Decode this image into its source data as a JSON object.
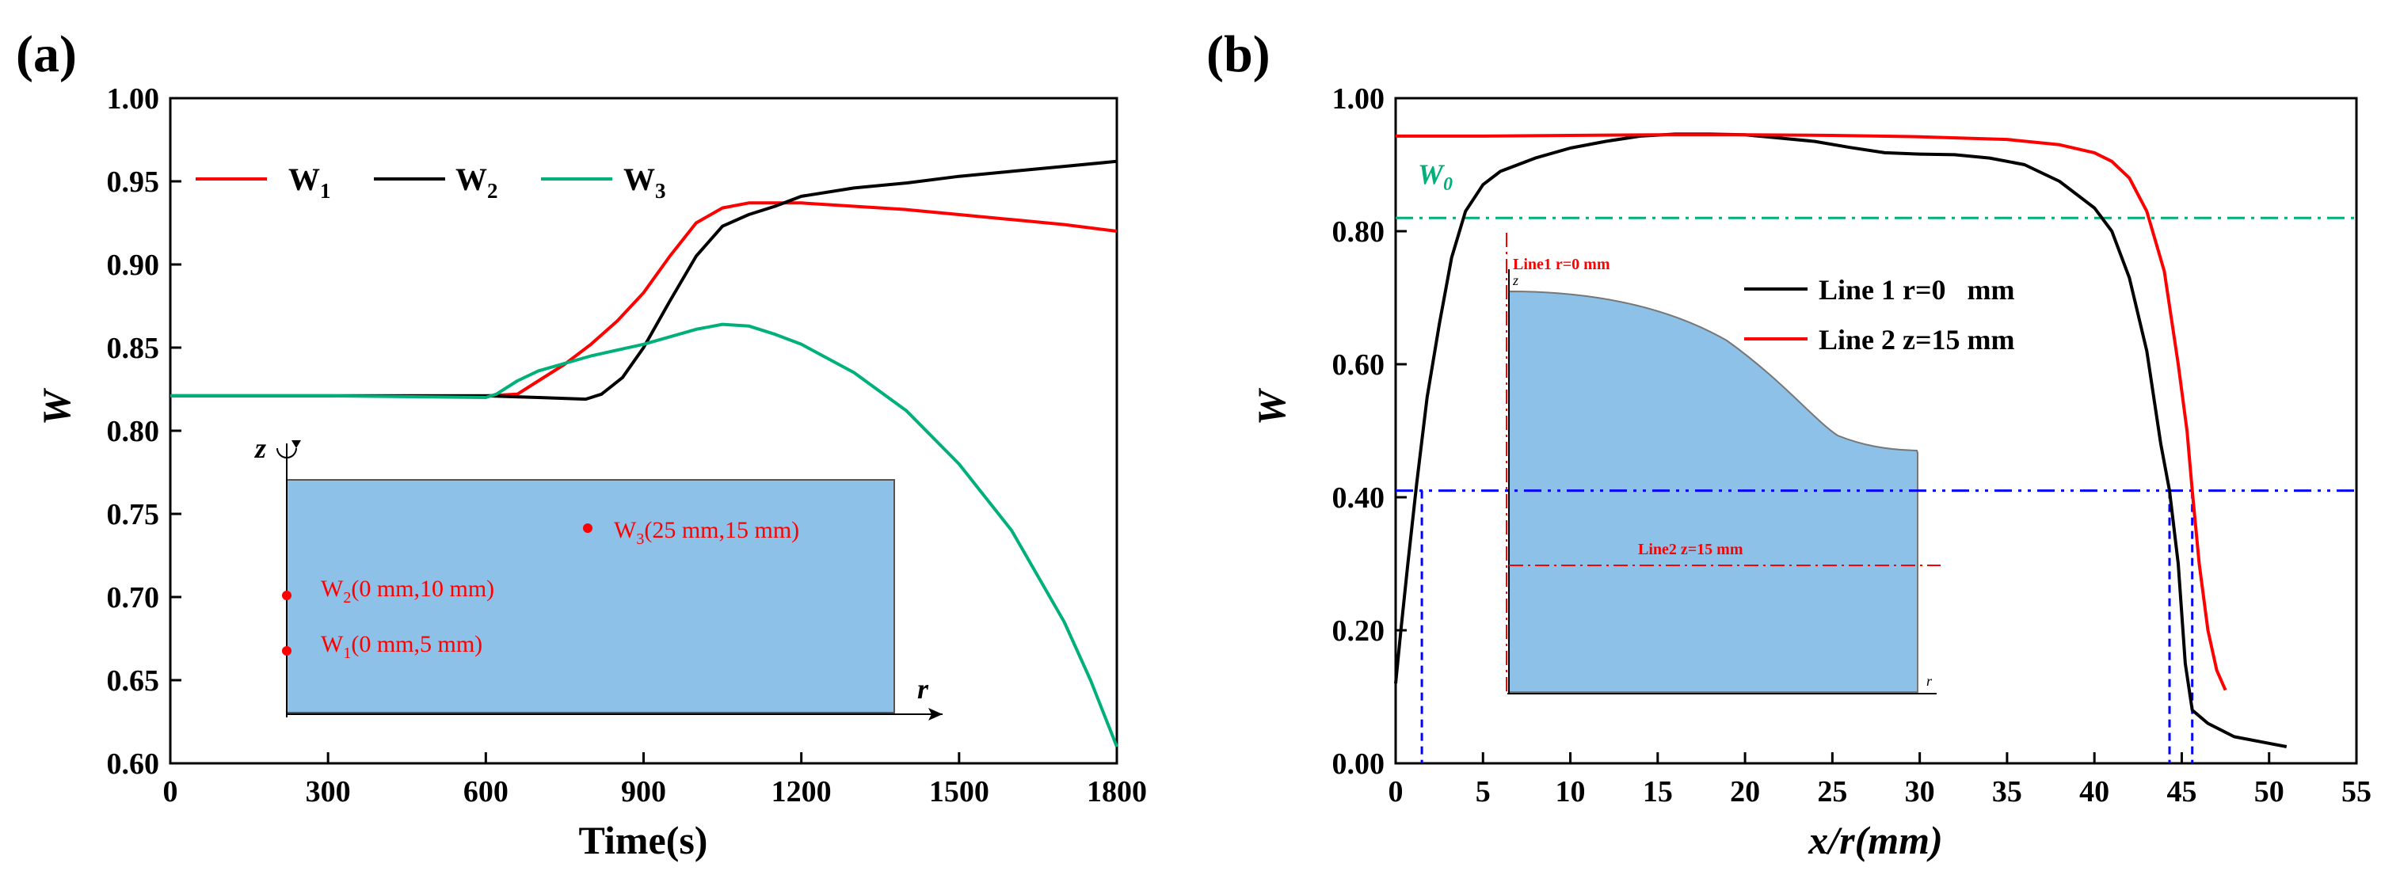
{
  "charts": [
    {
      "panel_label": "(a)",
      "type": "line",
      "xlabel": "Time(s)",
      "ylabel": "W",
      "xlim": [
        0,
        1800
      ],
      "ylim": [
        0.6,
        1.0
      ],
      "xticks": [
        "0",
        "300",
        "600",
        "900",
        "1200",
        "1500",
        "1800"
      ],
      "yticks": [
        "0.60",
        "0.65",
        "0.70",
        "0.75",
        "0.80",
        "0.85",
        "0.90",
        "0.95",
        "1.00"
      ],
      "legend": [
        {
          "label": "W",
          "sub": "1",
          "color": "#ff0000"
        },
        {
          "label": "W",
          "sub": "2",
          "color": "#000000"
        },
        {
          "label": "W",
          "sub": "3",
          "color": "#00b07a"
        }
      ],
      "series": [
        {
          "name": "W1",
          "color": "#ff0000",
          "points": [
            [
              0,
              0.821
            ],
            [
              300,
              0.821
            ],
            [
              600,
              0.821
            ],
            [
              660,
              0.822
            ],
            [
              700,
              0.83
            ],
            [
              750,
              0.84
            ],
            [
              800,
              0.852
            ],
            [
              850,
              0.866
            ],
            [
              900,
              0.883
            ],
            [
              950,
              0.905
            ],
            [
              1000,
              0.925
            ],
            [
              1050,
              0.934
            ],
            [
              1100,
              0.937
            ],
            [
              1200,
              0.937
            ],
            [
              1300,
              0.935
            ],
            [
              1400,
              0.933
            ],
            [
              1500,
              0.93
            ],
            [
              1600,
              0.927
            ],
            [
              1700,
              0.924
            ],
            [
              1800,
              0.92
            ]
          ]
        },
        {
          "name": "W2",
          "color": "#000000",
          "points": [
            [
              0,
              0.821
            ],
            [
              300,
              0.821
            ],
            [
              600,
              0.821
            ],
            [
              700,
              0.82
            ],
            [
              790,
              0.819
            ],
            [
              820,
              0.822
            ],
            [
              860,
              0.832
            ],
            [
              900,
              0.85
            ],
            [
              950,
              0.878
            ],
            [
              1000,
              0.905
            ],
            [
              1050,
              0.923
            ],
            [
              1100,
              0.93
            ],
            [
              1150,
              0.935
            ],
            [
              1200,
              0.941
            ],
            [
              1300,
              0.946
            ],
            [
              1400,
              0.949
            ],
            [
              1500,
              0.953
            ],
            [
              1600,
              0.956
            ],
            [
              1700,
              0.959
            ],
            [
              1800,
              0.962
            ]
          ]
        },
        {
          "name": "W3",
          "color": "#00b07a",
          "points": [
            [
              0,
              0.821
            ],
            [
              300,
              0.821
            ],
            [
              600,
              0.82
            ],
            [
              620,
              0.822
            ],
            [
              660,
              0.83
            ],
            [
              700,
              0.836
            ],
            [
              800,
              0.845
            ],
            [
              900,
              0.852
            ],
            [
              1000,
              0.861
            ],
            [
              1050,
              0.864
            ],
            [
              1100,
              0.863
            ],
            [
              1150,
              0.858
            ],
            [
              1200,
              0.852
            ],
            [
              1300,
              0.835
            ],
            [
              1400,
              0.812
            ],
            [
              1500,
              0.78
            ],
            [
              1600,
              0.74
            ],
            [
              1700,
              0.685
            ],
            [
              1750,
              0.65
            ],
            [
              1800,
              0.61
            ]
          ]
        }
      ],
      "inset": {
        "axis_z": "z",
        "axis_r": "r",
        "points": [
          {
            "label": "W",
            "sub": "3",
            "rest": "(25 mm,15 mm)"
          },
          {
            "label": "W",
            "sub": "2",
            "rest": "(0 mm,10 mm)"
          },
          {
            "label": "W",
            "sub": "1",
            "rest": "(0 mm,5 mm)"
          }
        ]
      }
    },
    {
      "panel_label": "(b)",
      "type": "line",
      "xlabel": "x/r(mm)",
      "ylabel": "W",
      "xlim": [
        0,
        55
      ],
      "ylim": [
        0.0,
        1.0
      ],
      "xticks": [
        "0",
        "5",
        "10",
        "15",
        "20",
        "25",
        "30",
        "35",
        "40",
        "45",
        "50",
        "55"
      ],
      "yticks": [
        "0.00",
        "0.20",
        "0.40",
        "0.60",
        "0.80",
        "1.00"
      ],
      "legend": [
        {
          "label": "Line 1 r=0   mm",
          "color": "#000000"
        },
        {
          "label": "Line 2 z=15 mm",
          "color": "#ff0000"
        }
      ],
      "w0_label": "W",
      "w0_sub": "0",
      "w0_value": 0.82,
      "threshold_value": 0.41,
      "vlines": [
        1.5,
        44.3,
        45.6
      ],
      "series": [
        {
          "name": "Line 1 r=0 mm",
          "color": "#000000",
          "points": [
            [
              0,
              0.12
            ],
            [
              0.3,
              0.2
            ],
            [
              0.7,
              0.3
            ],
            [
              1.2,
              0.42
            ],
            [
              1.8,
              0.55
            ],
            [
              2.5,
              0.66
            ],
            [
              3.2,
              0.76
            ],
            [
              4,
              0.83
            ],
            [
              5,
              0.87
            ],
            [
              6,
              0.89
            ],
            [
              8,
              0.91
            ],
            [
              10,
              0.925
            ],
            [
              12,
              0.935
            ],
            [
              14,
              0.943
            ],
            [
              16,
              0.946
            ],
            [
              18,
              0.946
            ],
            [
              20,
              0.945
            ],
            [
              22,
              0.94
            ],
            [
              24,
              0.935
            ],
            [
              26,
              0.926
            ],
            [
              28,
              0.918
            ],
            [
              30,
              0.916
            ],
            [
              32,
              0.915
            ],
            [
              34,
              0.91
            ],
            [
              36,
              0.9
            ],
            [
              38,
              0.875
            ],
            [
              40,
              0.835
            ],
            [
              41,
              0.8
            ],
            [
              42,
              0.73
            ],
            [
              43,
              0.62
            ],
            [
              43.8,
              0.48
            ],
            [
              44.3,
              0.41
            ],
            [
              44.8,
              0.3
            ],
            [
              45.2,
              0.15
            ],
            [
              45.6,
              0.08
            ],
            [
              46.5,
              0.06
            ],
            [
              48,
              0.04
            ],
            [
              50,
              0.03
            ],
            [
              51,
              0.025
            ]
          ]
        },
        {
          "name": "Line 2 z=15 mm",
          "color": "#ff0000",
          "points": [
            [
              0,
              0.943
            ],
            [
              5,
              0.943
            ],
            [
              10,
              0.944
            ],
            [
              15,
              0.945
            ],
            [
              20,
              0.945
            ],
            [
              25,
              0.944
            ],
            [
              30,
              0.942
            ],
            [
              35,
              0.938
            ],
            [
              38,
              0.93
            ],
            [
              40,
              0.918
            ],
            [
              41,
              0.905
            ],
            [
              42,
              0.88
            ],
            [
              43,
              0.83
            ],
            [
              44,
              0.74
            ],
            [
              44.8,
              0.6
            ],
            [
              45.3,
              0.5
            ],
            [
              45.6,
              0.41
            ],
            [
              46,
              0.3
            ],
            [
              46.5,
              0.2
            ],
            [
              47,
              0.14
            ],
            [
              47.5,
              0.11
            ]
          ]
        }
      ],
      "inset": {
        "line1_label": "Line1 r=0  mm",
        "line2_label": "Line2 z=15 mm",
        "axis_z": "z",
        "axis_r": "r"
      }
    }
  ]
}
